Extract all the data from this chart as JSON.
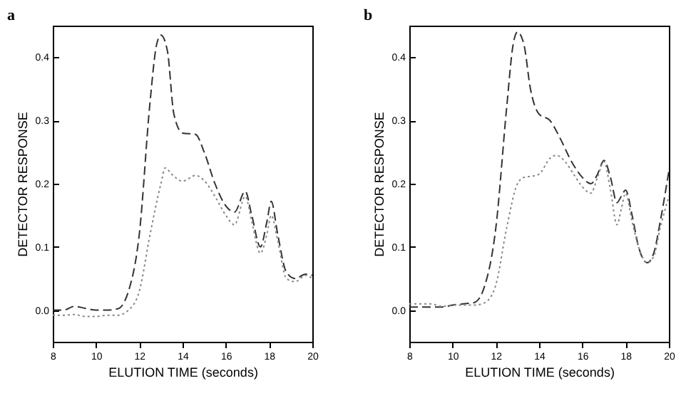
{
  "chart_data": [
    {
      "type": "line",
      "title": "a",
      "xlabel": "ELUTION TIME (seconds)",
      "ylabel": "DETECTOR RESPONSE",
      "xlim": [
        8,
        20
      ],
      "ylim": [
        -0.05,
        0.45
      ],
      "xticks": [
        8,
        10,
        12,
        14,
        16,
        18,
        20
      ],
      "yticks": [
        {
          "value": 0,
          "label": "0.0"
        },
        0.1,
        0.2,
        0.3,
        0.4
      ],
      "grid": false,
      "series": [
        {
          "color": "#333333",
          "line_style": "dashed",
          "x": [
            8,
            8.5,
            9,
            9.5,
            10,
            10.5,
            11,
            11.5,
            12,
            12.5,
            12.8,
            13,
            13.3,
            13.6,
            14,
            14.6,
            15,
            15.5,
            16,
            16.4,
            16.9,
            17.2,
            17.6,
            17.9,
            18.1,
            18.4,
            18.8,
            19.2,
            19.7,
            20
          ],
          "values": [
            0.0,
            0.0,
            0.006,
            0.003,
            0.0,
            0.0,
            0.002,
            0.03,
            0.12,
            0.33,
            0.42,
            0.435,
            0.41,
            0.31,
            0.28,
            0.278,
            0.25,
            0.2,
            0.165,
            0.155,
            0.188,
            0.15,
            0.1,
            0.14,
            0.172,
            0.12,
            0.06,
            0.05,
            0.057,
            0.055
          ]
        },
        {
          "color": "#888888",
          "line_style": "dotted",
          "x": [
            8,
            8.5,
            9,
            9.5,
            10,
            10.5,
            11,
            11.5,
            12,
            12.5,
            13,
            13.2,
            13.5,
            14,
            14.6,
            15,
            15.5,
            16,
            16.4,
            16.9,
            17.2,
            17.6,
            17.9,
            18.1,
            18.4,
            18.8,
            19.2,
            19.7,
            20
          ],
          "values": [
            -0.008,
            -0.008,
            -0.007,
            -0.01,
            -0.01,
            -0.008,
            -0.008,
            0.0,
            0.03,
            0.12,
            0.2,
            0.225,
            0.215,
            0.204,
            0.213,
            0.205,
            0.18,
            0.15,
            0.135,
            0.18,
            0.14,
            0.09,
            0.12,
            0.15,
            0.11,
            0.05,
            0.045,
            0.055,
            0.05
          ]
        }
      ]
    },
    {
      "type": "line",
      "title": "b",
      "xlabel": "ELUTION TIME (seconds)",
      "ylabel": "DETECTOR RESPONSE",
      "xlim": [
        8,
        20
      ],
      "ylim": [
        -0.05,
        0.45
      ],
      "xticks": [
        8,
        10,
        12,
        14,
        16,
        18,
        20
      ],
      "yticks": [
        {
          "value": 0,
          "label": "0.0"
        },
        0.1,
        0.2,
        0.3,
        0.4
      ],
      "grid": false,
      "series": [
        {
          "color": "#333333",
          "line_style": "dashed",
          "x": [
            8,
            9,
            9.5,
            10,
            10.5,
            11,
            11.5,
            12,
            12.5,
            12.8,
            13,
            13.3,
            13.6,
            14,
            14.5,
            15,
            15.5,
            16,
            16.4,
            16.7,
            17,
            17.3,
            17.6,
            17.8,
            18,
            18.3,
            18.6,
            19,
            19.3,
            19.6,
            20
          ],
          "values": [
            0.005,
            0.005,
            0.005,
            0.008,
            0.01,
            0.012,
            0.04,
            0.13,
            0.32,
            0.42,
            0.44,
            0.42,
            0.35,
            0.31,
            0.3,
            0.27,
            0.235,
            0.21,
            0.2,
            0.215,
            0.237,
            0.21,
            0.17,
            0.18,
            0.19,
            0.15,
            0.1,
            0.075,
            0.09,
            0.14,
            0.22
          ]
        },
        {
          "color": "#888888",
          "line_style": "dotted",
          "x": [
            8,
            8.5,
            9,
            9.5,
            10,
            10.5,
            11,
            11.5,
            12,
            12.5,
            13,
            13.3,
            13.7,
            14,
            14.5,
            14.8,
            15.2,
            15.6,
            16,
            16.4,
            16.7,
            17,
            17.3,
            17.6,
            17.8,
            18,
            18.3,
            18.6,
            19,
            19.3,
            19.6,
            20
          ],
          "values": [
            0.01,
            0.01,
            0.01,
            0.006,
            0.008,
            0.008,
            0.008,
            0.012,
            0.04,
            0.13,
            0.2,
            0.21,
            0.212,
            0.215,
            0.24,
            0.245,
            0.235,
            0.215,
            0.195,
            0.185,
            0.21,
            0.235,
            0.19,
            0.135,
            0.16,
            0.185,
            0.14,
            0.1,
            0.075,
            0.085,
            0.13,
            0.18
          ]
        }
      ]
    }
  ]
}
